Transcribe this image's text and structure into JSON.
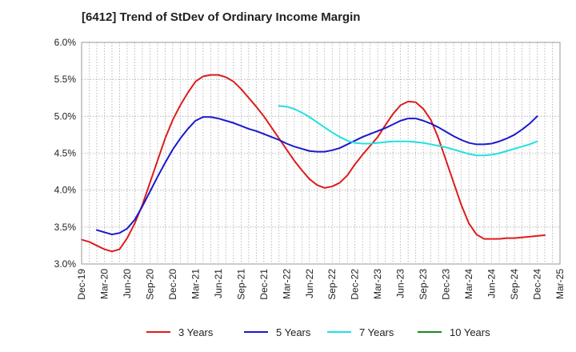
{
  "chart_data": {
    "type": "line",
    "title": "[6412]  Trend of StDev of Ordinary Income Margin",
    "xlabel": "",
    "ylabel": "",
    "ylim": [
      3.0,
      6.0
    ],
    "yticks": [
      3.0,
      3.5,
      4.0,
      4.5,
      5.0,
      5.5,
      6.0
    ],
    "ytick_labels": [
      "3.0%",
      "3.5%",
      "4.0%",
      "4.5%",
      "5.0%",
      "5.5%",
      "6.0%"
    ],
    "xlim": [
      "Dec-19",
      "Mar-25"
    ],
    "xtick_labels": [
      "Dec-19",
      "Mar-20",
      "Jun-20",
      "Sep-20",
      "Dec-20",
      "Mar-21",
      "Jun-21",
      "Sep-21",
      "Dec-21",
      "Mar-22",
      "Jun-22",
      "Sep-22",
      "Dec-22",
      "Mar-23",
      "Jun-23",
      "Sep-23",
      "Dec-23",
      "Mar-24",
      "Jun-24",
      "Sep-24",
      "Dec-24",
      "Mar-25"
    ],
    "grid": true,
    "legend_position": "bottom",
    "series": [
      {
        "name": "3 Years",
        "color": "#dd1c1c",
        "points": [
          [
            "2019-12",
            3.33
          ],
          [
            "2020-01",
            3.3
          ],
          [
            "2020-02",
            3.25
          ],
          [
            "2020-03",
            3.2
          ],
          [
            "2020-04",
            3.17
          ],
          [
            "2020-05",
            3.2
          ],
          [
            "2020-06",
            3.35
          ],
          [
            "2020-07",
            3.55
          ],
          [
            "2020-08",
            3.8
          ],
          [
            "2020-09",
            4.1
          ],
          [
            "2020-10",
            4.4
          ],
          [
            "2020-11",
            4.7
          ],
          [
            "2020-12",
            4.95
          ],
          [
            "2021-01",
            5.15
          ],
          [
            "2021-02",
            5.32
          ],
          [
            "2021-03",
            5.47
          ],
          [
            "2021-04",
            5.54
          ],
          [
            "2021-05",
            5.56
          ],
          [
            "2021-06",
            5.56
          ],
          [
            "2021-07",
            5.53
          ],
          [
            "2021-08",
            5.47
          ],
          [
            "2021-09",
            5.37
          ],
          [
            "2021-10",
            5.25
          ],
          [
            "2021-11",
            5.13
          ],
          [
            "2021-12",
            5.0
          ],
          [
            "2022-01",
            4.85
          ],
          [
            "2022-02",
            4.7
          ],
          [
            "2022-03",
            4.55
          ],
          [
            "2022-04",
            4.4
          ],
          [
            "2022-05",
            4.27
          ],
          [
            "2022-06",
            4.15
          ],
          [
            "2022-07",
            4.07
          ],
          [
            "2022-08",
            4.03
          ],
          [
            "2022-09",
            4.05
          ],
          [
            "2022-10",
            4.1
          ],
          [
            "2022-11",
            4.2
          ],
          [
            "2022-12",
            4.35
          ],
          [
            "2023-01",
            4.48
          ],
          [
            "2023-02",
            4.6
          ],
          [
            "2023-03",
            4.72
          ],
          [
            "2023-04",
            4.88
          ],
          [
            "2023-05",
            5.03
          ],
          [
            "2023-06",
            5.15
          ],
          [
            "2023-07",
            5.2
          ],
          [
            "2023-08",
            5.19
          ],
          [
            "2023-09",
            5.1
          ],
          [
            "2023-10",
            4.95
          ],
          [
            "2023-11",
            4.7
          ],
          [
            "2023-12",
            4.4
          ],
          [
            "2024-01",
            4.1
          ],
          [
            "2024-02",
            3.8
          ],
          [
            "2024-03",
            3.55
          ],
          [
            "2024-04",
            3.4
          ],
          [
            "2024-05",
            3.34
          ],
          [
            "2024-06",
            3.34
          ],
          [
            "2024-07",
            3.34
          ],
          [
            "2024-08",
            3.35
          ],
          [
            "2024-09",
            3.35
          ],
          [
            "2024-10",
            3.36
          ],
          [
            "2024-11",
            3.37
          ],
          [
            "2024-12",
            3.38
          ],
          [
            "2025-01",
            3.39
          ]
        ]
      },
      {
        "name": "5 Years",
        "color": "#1a1acc",
        "points": [
          [
            "2020-02",
            3.46
          ],
          [
            "2020-03",
            3.43
          ],
          [
            "2020-04",
            3.4
          ],
          [
            "2020-05",
            3.42
          ],
          [
            "2020-06",
            3.48
          ],
          [
            "2020-07",
            3.6
          ],
          [
            "2020-08",
            3.78
          ],
          [
            "2020-09",
            3.98
          ],
          [
            "2020-10",
            4.18
          ],
          [
            "2020-11",
            4.37
          ],
          [
            "2020-12",
            4.55
          ],
          [
            "2021-01",
            4.7
          ],
          [
            "2021-02",
            4.83
          ],
          [
            "2021-03",
            4.94
          ],
          [
            "2021-04",
            4.99
          ],
          [
            "2021-05",
            4.99
          ],
          [
            "2021-06",
            4.97
          ],
          [
            "2021-07",
            4.94
          ],
          [
            "2021-08",
            4.91
          ],
          [
            "2021-09",
            4.87
          ],
          [
            "2021-10",
            4.83
          ],
          [
            "2021-11",
            4.8
          ],
          [
            "2021-12",
            4.76
          ],
          [
            "2022-01",
            4.72
          ],
          [
            "2022-02",
            4.68
          ],
          [
            "2022-03",
            4.63
          ],
          [
            "2022-04",
            4.59
          ],
          [
            "2022-05",
            4.56
          ],
          [
            "2022-06",
            4.53
          ],
          [
            "2022-07",
            4.52
          ],
          [
            "2022-08",
            4.52
          ],
          [
            "2022-09",
            4.54
          ],
          [
            "2022-10",
            4.57
          ],
          [
            "2022-11",
            4.62
          ],
          [
            "2022-12",
            4.67
          ],
          [
            "2023-01",
            4.72
          ],
          [
            "2023-02",
            4.76
          ],
          [
            "2023-03",
            4.8
          ],
          [
            "2023-04",
            4.84
          ],
          [
            "2023-05",
            4.89
          ],
          [
            "2023-06",
            4.94
          ],
          [
            "2023-07",
            4.97
          ],
          [
            "2023-08",
            4.97
          ],
          [
            "2023-09",
            4.94
          ],
          [
            "2023-10",
            4.9
          ],
          [
            "2023-11",
            4.85
          ],
          [
            "2023-12",
            4.79
          ],
          [
            "2024-01",
            4.73
          ],
          [
            "2024-02",
            4.68
          ],
          [
            "2024-03",
            4.64
          ],
          [
            "2024-04",
            4.62
          ],
          [
            "2024-05",
            4.62
          ],
          [
            "2024-06",
            4.63
          ],
          [
            "2024-07",
            4.66
          ],
          [
            "2024-08",
            4.7
          ],
          [
            "2024-09",
            4.75
          ],
          [
            "2024-10",
            4.82
          ],
          [
            "2024-11",
            4.9
          ],
          [
            "2024-12",
            5.0
          ]
        ]
      },
      {
        "name": "7 Years",
        "color": "#22e0e0",
        "points": [
          [
            "2022-02",
            5.14
          ],
          [
            "2022-03",
            5.13
          ],
          [
            "2022-04",
            5.1
          ],
          [
            "2022-05",
            5.05
          ],
          [
            "2022-06",
            4.99
          ],
          [
            "2022-07",
            4.92
          ],
          [
            "2022-08",
            4.85
          ],
          [
            "2022-09",
            4.78
          ],
          [
            "2022-10",
            4.72
          ],
          [
            "2022-11",
            4.67
          ],
          [
            "2022-12",
            4.64
          ],
          [
            "2023-01",
            4.63
          ],
          [
            "2023-02",
            4.63
          ],
          [
            "2023-03",
            4.64
          ],
          [
            "2023-04",
            4.65
          ],
          [
            "2023-05",
            4.66
          ],
          [
            "2023-06",
            4.66
          ],
          [
            "2023-07",
            4.66
          ],
          [
            "2023-08",
            4.65
          ],
          [
            "2023-09",
            4.64
          ],
          [
            "2023-10",
            4.62
          ],
          [
            "2023-11",
            4.6
          ],
          [
            "2023-12",
            4.58
          ],
          [
            "2024-01",
            4.55
          ],
          [
            "2024-02",
            4.52
          ],
          [
            "2024-03",
            4.49
          ],
          [
            "2024-04",
            4.47
          ],
          [
            "2024-05",
            4.47
          ],
          [
            "2024-06",
            4.48
          ],
          [
            "2024-07",
            4.5
          ],
          [
            "2024-08",
            4.53
          ],
          [
            "2024-09",
            4.56
          ],
          [
            "2024-10",
            4.59
          ],
          [
            "2024-11",
            4.62
          ],
          [
            "2024-12",
            4.66
          ]
        ]
      },
      {
        "name": "10 Years",
        "color": "#1a8a1a",
        "points": []
      }
    ]
  }
}
